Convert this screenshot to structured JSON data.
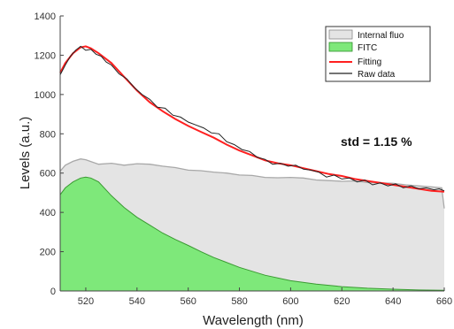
{
  "chart_data": {
    "type": "area",
    "xlabel": "Wavelength (nm)",
    "ylabel": "Levels (a.u.)",
    "xlim": [
      510,
      660
    ],
    "ylim": [
      0,
      1400
    ],
    "x_ticks": [
      "520",
      "540",
      "560",
      "580",
      "600",
      "620",
      "640",
      "660"
    ],
    "y_ticks": [
      "0",
      "200",
      "400",
      "600",
      "800",
      "1000",
      "1200",
      "1400"
    ],
    "grid": false,
    "legend_position": "top-right",
    "legend": [
      "Internal fluo",
      "FITC",
      "Fitting",
      "Raw data"
    ],
    "annotation": "std = 1.15 %",
    "colors": {
      "internal_fluo_fill": "#e4e4e4",
      "internal_fluo_line": "#a8a8a8",
      "fitc_fill": "#7ee87a",
      "fitc_line": "#3a9a32",
      "fitting": "#ff2020",
      "raw_data": "#222222"
    },
    "series": [
      {
        "name": "Internal fluo",
        "x": [
          510,
          512,
          515,
          518,
          520,
          525,
          530,
          535,
          540,
          545,
          550,
          555,
          560,
          565,
          570,
          575,
          580,
          585,
          590,
          595,
          600,
          605,
          610,
          615,
          620,
          625,
          630,
          635,
          640,
          645,
          650,
          655,
          659,
          660
        ],
        "values": [
          610,
          640,
          660,
          672,
          668,
          645,
          650,
          640,
          648,
          645,
          635,
          628,
          615,
          612,
          605,
          600,
          590,
          588,
          578,
          576,
          578,
          575,
          565,
          562,
          558,
          560,
          552,
          550,
          548,
          540,
          535,
          530,
          525,
          420
        ]
      },
      {
        "name": "FITC",
        "x": [
          510,
          512,
          515,
          518,
          520,
          522,
          525,
          530,
          535,
          540,
          545,
          550,
          555,
          560,
          565,
          570,
          580,
          590,
          600,
          610,
          620,
          630,
          640,
          650,
          660
        ],
        "values": [
          490,
          525,
          555,
          575,
          580,
          575,
          555,
          485,
          425,
          375,
          335,
          295,
          262,
          232,
          200,
          170,
          120,
          80,
          52,
          35,
          22,
          14,
          9,
          5,
          3
        ]
      },
      {
        "name": "Fitting",
        "x": [
          510,
          512,
          515,
          518,
          520,
          522,
          525,
          530,
          535,
          540,
          545,
          550,
          555,
          560,
          565,
          570,
          575,
          580,
          585,
          590,
          595,
          600,
          605,
          610,
          615,
          620,
          625,
          630,
          635,
          640,
          645,
          650,
          655,
          660
        ],
        "values": [
          1110,
          1160,
          1210,
          1240,
          1245,
          1235,
          1210,
          1160,
          1090,
          1020,
          960,
          915,
          875,
          840,
          810,
          780,
          745,
          715,
          690,
          665,
          650,
          640,
          625,
          610,
          595,
          585,
          570,
          560,
          550,
          540,
          530,
          520,
          510,
          505
        ]
      },
      {
        "name": "Raw data",
        "x": [
          510,
          512,
          514,
          516,
          518,
          520,
          522,
          524,
          526,
          528,
          530,
          533,
          536,
          539,
          542,
          545,
          548,
          551,
          554,
          557,
          560,
          563,
          566,
          569,
          572,
          575,
          578,
          581,
          584,
          587,
          590,
          593,
          596,
          599,
          602,
          605,
          608,
          611,
          614,
          617,
          620,
          623,
          626,
          629,
          632,
          635,
          638,
          641,
          644,
          647,
          650,
          653,
          656,
          658,
          660
        ],
        "values": [
          1100,
          1150,
          1195,
          1225,
          1245,
          1225,
          1230,
          1205,
          1195,
          1165,
          1150,
          1105,
          1080,
          1035,
          1000,
          975,
          935,
          930,
          895,
          885,
          860,
          845,
          830,
          805,
          800,
          760,
          745,
          720,
          710,
          680,
          670,
          645,
          650,
          635,
          640,
          620,
          615,
          605,
          580,
          590,
          570,
          575,
          555,
          565,
          540,
          550,
          535,
          545,
          525,
          535,
          520,
          525,
          515,
          520,
          510
        ]
      }
    ]
  }
}
